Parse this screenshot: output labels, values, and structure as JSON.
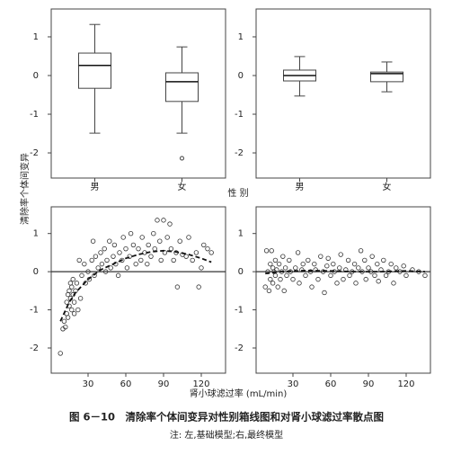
{
  "figure": {
    "ylabel": "清除率个体间变异",
    "box_xlabel": "性 别",
    "scatter_xlabel": "肾小球滤过率 (mL/min)",
    "caption": "图 6－10　清除率个体间变异对性别箱线图和对肾小球滤过率散点图",
    "note": "注: 左,基础模型;右,最终模型"
  },
  "chart_data": [
    {
      "type": "box",
      "categories": [
        "男",
        "女"
      ],
      "boxes": [
        {
          "whislo": -1.49,
          "q1": -0.33,
          "med": 0.26,
          "q3": 0.58,
          "whishi": 1.32,
          "fliers": []
        },
        {
          "whislo": -1.49,
          "q1": -0.67,
          "med": -0.16,
          "q3": 0.07,
          "whishi": 0.74,
          "fliers": [
            -2.14
          ]
        }
      ],
      "ylim": [
        -2.65,
        1.72
      ],
      "yticks": [
        -2,
        -1,
        0,
        1
      ]
    },
    {
      "type": "box",
      "categories": [
        "男",
        "女"
      ],
      "boxes": [
        {
          "whislo": -0.53,
          "q1": -0.14,
          "med": 0,
          "q3": 0.14,
          "whishi": 0.49,
          "fliers": []
        },
        {
          "whislo": -0.42,
          "q1": -0.16,
          "med": 0.05,
          "q3": 0.09,
          "whishi": 0.35,
          "fliers": []
        }
      ],
      "ylim": [
        -2.65,
        1.72
      ],
      "yticks": [
        -2,
        -1,
        0,
        1
      ]
    },
    {
      "type": "scatter",
      "x": [
        8,
        10,
        11,
        12,
        13,
        13,
        14,
        14,
        15,
        15,
        16,
        16,
        17,
        17,
        18,
        18,
        19,
        19,
        20,
        21,
        22,
        23,
        24,
        25,
        27,
        28,
        30,
        31,
        33,
        34,
        35,
        36,
        38,
        40,
        41,
        43,
        44,
        45,
        47,
        48,
        50,
        51,
        52,
        54,
        55,
        57,
        58,
        60,
        61,
        63,
        64,
        66,
        68,
        70,
        72,
        73,
        75,
        77,
        78,
        80,
        82,
        83,
        85,
        87,
        88,
        90,
        91,
        93,
        95,
        96,
        98,
        100,
        101,
        103,
        105,
        108,
        110,
        113,
        116,
        118,
        120,
        122,
        125,
        128
      ],
      "y": [
        -2.14,
        -1.5,
        -1.3,
        -1.45,
        -1.1,
        -0.8,
        -0.6,
        -1.2,
        -0.5,
        -0.9,
        -0.3,
        -0.7,
        -1.0,
        -0.4,
        -0.2,
        -0.6,
        -1.1,
        -0.8,
        -0.5,
        -0.3,
        -1.0,
        0.3,
        -0.7,
        -0.1,
        0.2,
        -0.3,
        0.0,
        -0.2,
        0.3,
        0.8,
        -0.1,
        0.4,
        0.1,
        0.5,
        0.2,
        0.6,
        0.0,
        0.3,
        0.8,
        0.1,
        0.4,
        0.7,
        0.2,
        -0.1,
        0.5,
        0.3,
        0.9,
        0.6,
        0.1,
        0.4,
        1.0,
        0.7,
        0.2,
        0.6,
        0.3,
        0.9,
        0.5,
        0.2,
        0.7,
        0.4,
        1.0,
        0.6,
        1.35,
        0.8,
        0.3,
        1.35,
        0.5,
        0.9,
        1.25,
        0.6,
        0.3,
        0.5,
        -0.4,
        0.8,
        0.45,
        0.4,
        0.9,
        0.3,
        0.5,
        -0.4,
        0.1,
        0.7,
        0.6,
        0.5
      ],
      "fit": {
        "x": [
          8,
          15,
          20,
          30,
          40,
          50,
          60,
          70,
          80,
          90,
          100,
          110,
          120,
          128
        ],
        "y": [
          -1.3,
          -0.8,
          -0.55,
          -0.2,
          0.05,
          0.2,
          0.35,
          0.45,
          0.52,
          0.55,
          0.52,
          0.45,
          0.35,
          0.25
        ]
      },
      "hline": 0,
      "xlim": [
        0.7,
        139.3
      ],
      "ylim": [
        -2.66,
        1.7
      ],
      "xticks": [
        30,
        60,
        90,
        120
      ],
      "yticks": [
        -2,
        -1,
        0,
        1
      ]
    },
    {
      "type": "scatter",
      "x": [
        8,
        9,
        10,
        11,
        12,
        12,
        13,
        14,
        14,
        15,
        16,
        16,
        17,
        18,
        19,
        20,
        21,
        22,
        23,
        24,
        25,
        27,
        28,
        30,
        32,
        34,
        35,
        37,
        38,
        40,
        42,
        44,
        45,
        47,
        48,
        50,
        52,
        54,
        55,
        57,
        58,
        60,
        62,
        63,
        65,
        67,
        68,
        70,
        72,
        74,
        75,
        77,
        79,
        80,
        82,
        84,
        85,
        87,
        88,
        90,
        92,
        93,
        95,
        97,
        98,
        100,
        102,
        104,
        106,
        108,
        110,
        112,
        115,
        118,
        120,
        125,
        130,
        135
      ],
      "y": [
        -0.4,
        0.55,
        0.0,
        -0.5,
        0.2,
        -0.2,
        0.55,
        0.1,
        -0.3,
        0.0,
        -0.1,
        0.3,
        0.05,
        -0.4,
        0.2,
        -0.2,
        0.0,
        0.4,
        -0.5,
        0.1,
        -0.1,
        0.3,
        0.0,
        -0.2,
        0.1,
        0.5,
        -0.3,
        0.05,
        0.2,
        -0.1,
        0.3,
        0.0,
        -0.4,
        0.2,
        0.05,
        -0.2,
        0.4,
        0.0,
        -0.55,
        0.15,
        0.35,
        -0.1,
        0.2,
        0.0,
        -0.3,
        0.1,
        0.45,
        -0.2,
        0.05,
        0.3,
        -0.1,
        0.0,
        0.2,
        -0.3,
        0.1,
        0.55,
        0.0,
        0.3,
        -0.2,
        0.1,
        0.0,
        0.4,
        -0.1,
        0.2,
        -0.25,
        0.05,
        0.3,
        -0.1,
        0.0,
        0.2,
        -0.3,
        0.1,
        0.0,
        0.15,
        -0.1,
        0.05,
        0.0,
        -0.1
      ],
      "fit": {
        "x": [
          8,
          20,
          40,
          60,
          80,
          100,
          120,
          135
        ],
        "y": [
          -0.05,
          0.0,
          0.03,
          0.02,
          0.0,
          0.0,
          0.02,
          0.0
        ]
      },
      "hline": 0,
      "xlim": [
        0.7,
        139.3
      ],
      "ylim": [
        -2.66,
        1.7
      ],
      "xticks": [
        30,
        60,
        90,
        120
      ],
      "yticks": [
        -2,
        -1,
        0,
        1
      ]
    }
  ]
}
